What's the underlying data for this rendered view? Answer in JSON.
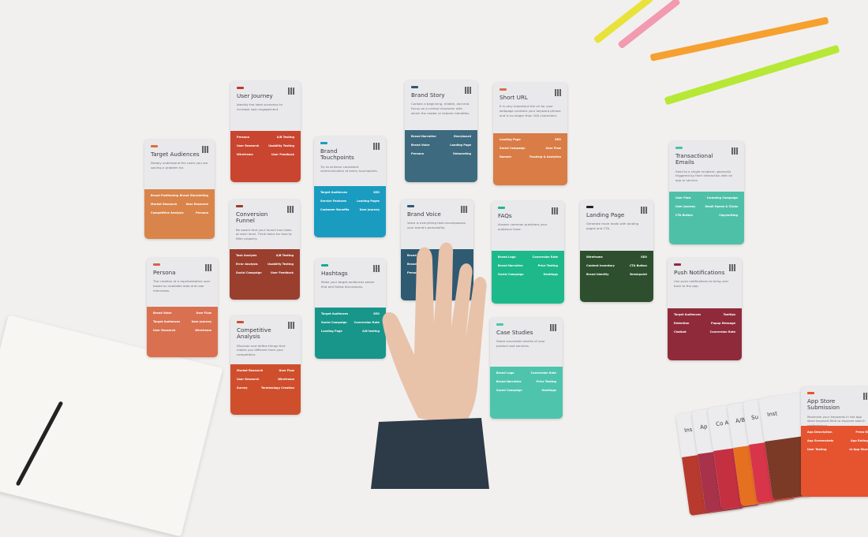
{
  "cards": [
    {
      "title": "Target Audiences",
      "desc": "Deeply understand the users you are solving a problem for.",
      "color": "#d9844a",
      "tag": "#e0703a",
      "rows": [
        [
          "Brand Positioning",
          "Brand Storytelling"
        ],
        [
          "Market Research",
          "User Research"
        ],
        [
          "Competitive Analysis",
          "Persona"
        ]
      ]
    },
    {
      "title": "User Journey",
      "desc": "Identify the ideal scenarios to increase user engagement.",
      "color": "#c9452f",
      "tag": "#c0392b",
      "rows": [
        [
          "Persona",
          "A/B Testing"
        ],
        [
          "User Research",
          "Usability Testing"
        ],
        [
          "Wireframe",
          "User Feedback"
        ]
      ]
    },
    {
      "title": "Brand Touchpoints",
      "desc": "Try to achieve consistent communication at every touchpoints.",
      "color": "#1a9cc0",
      "tag": "#1a9cc0",
      "rows": [
        [
          "Target Audiences",
          "SEO"
        ],
        [
          "Service Features",
          "Landing Pages"
        ],
        [
          "Customer Benefits",
          "User Journey"
        ]
      ]
    },
    {
      "title": "Conversion Funnel",
      "desc": "Be aware that your funnel has holes at each level. Think twice for how to filter properly.",
      "color": "#9a3e2e",
      "tag": "#9a3e2e",
      "rows": [
        [
          "Task Analysis",
          "A/B Testing"
        ],
        [
          "Error Analysis",
          "Usability Testing"
        ],
        [
          "Social Campaign",
          "User Feedback"
        ]
      ]
    },
    {
      "title": "Persona",
      "desc": "The creation of a representative user based on available data and user interviews.",
      "color": "#d9704f",
      "tag": "#d9604a",
      "rows": [
        [
          "Brand Voice",
          "User Flow"
        ],
        [
          "Target Audiences",
          "User Journey"
        ],
        [
          "User Research",
          "Wireframe"
        ]
      ]
    },
    {
      "title": "Competitive Analysis",
      "desc": "Discover and define things that makes you different from your competitors.",
      "color": "#cf4f2c",
      "tag": "#cf4f2c",
      "rows": [
        [
          "Market Research",
          "User Flow"
        ],
        [
          "User Research",
          "Wireframe"
        ],
        [
          "Survey",
          "Terminology Creation"
        ]
      ]
    },
    {
      "title": "Hashtags",
      "desc": "Make your target audiences easier find and follow discussions.",
      "color": "#18968a",
      "tag": "#18a898",
      "rows": [
        [
          "Target Audiences",
          "SEO"
        ],
        [
          "Social Campaign",
          "Conversion Rate"
        ],
        [
          "Landing Page",
          "A/B testing"
        ]
      ]
    },
    {
      "title": "Brand Story",
      "desc": "Contain a beginning, middle, and end. Focus on a central character with which the reader or listener identifies.",
      "color": "#3d6a7e",
      "tag": "#2e5a72",
      "rows": [
        [
          "Brand Narrative",
          "Storyboard"
        ],
        [
          "Brand Voice",
          "Landing Page"
        ],
        [
          "Persona",
          "Onboarding"
        ]
      ]
    },
    {
      "title": "Short URL",
      "desc": "It is very important the url for your webpage contains your keyword phrase and is no longer than 100 characters.",
      "color": "#d97c46",
      "tag": "#d9704a",
      "rows": [
        [
          "Landing Page",
          "SEO"
        ],
        [
          "Social Campaign",
          "User Flow"
        ],
        [
          "Domain",
          "Tracking & Analytics"
        ]
      ]
    },
    {
      "title": "Brand Voice",
      "desc": "Voice is everything that encompasses your brand's personality.",
      "color": "#2e5a72",
      "tag": "#2e5a72",
      "rows": [
        [
          "Brand Story",
          ""
        ],
        [
          "Brand Narrative",
          ""
        ],
        [
          "Persona",
          ""
        ]
      ]
    },
    {
      "title": "FAQs",
      "desc": "Answer common questions your audience have.",
      "color": "#1db98a",
      "tag": "#1db98a",
      "rows": [
        [
          "Brand Logo",
          "Conversion Rate"
        ],
        [
          "Brand Narrative",
          "Price Testing"
        ],
        [
          "Social Campaign",
          "Hashtags"
        ]
      ]
    },
    {
      "title": "Landing Page",
      "desc": "Generate more leads with landing pages and CTA.",
      "color": "#2d4f2e",
      "tag": "#222",
      "rows": [
        [
          "Wireframe",
          "SEO"
        ],
        [
          "Content Inventory",
          "CTA Button"
        ],
        [
          "Brand Identity",
          "Breakpoint"
        ]
      ]
    },
    {
      "title": "Transactional Emails",
      "desc": "Send to a single recipient, generally triggered by their interaction with an app or service.",
      "color": "#4fc0a8",
      "tag": "#4fc0a8",
      "rows": [
        [
          "User Flow",
          "Incoming Campaign"
        ],
        [
          "User Journey",
          "Email Opens & Clicks"
        ],
        [
          "CTA Button",
          "Copywriting"
        ]
      ]
    },
    {
      "title": "Push Notifications",
      "desc": "Use push notifications to bring user back to the app.",
      "color": "#8f2a3a",
      "tag": "#8f2a3a",
      "rows": [
        [
          "Target Audiences",
          "Tooltips"
        ],
        [
          "Retention",
          "Popup Message"
        ],
        [
          "Chatbot",
          "Conversion Rate"
        ]
      ]
    },
    {
      "title": "Case Studies",
      "desc": "Share successful stories of your product and services.",
      "color": "#4ec4ac",
      "tag": "#4ec4ac",
      "rows": [
        [
          "Brand Logo",
          "Conversion Rate"
        ],
        [
          "Brand Narrative",
          "Price Testing"
        ],
        [
          "Social Campaign",
          "Hashtags"
        ]
      ]
    },
    {
      "title": "App Store Submission",
      "desc": "Maximize your keywords in the app store keyword field to improve search performance.",
      "color": "#e5532f",
      "tag": "#e5532f",
      "rows": [
        [
          "App Description",
          "Press Kit"
        ],
        [
          "App Screenshots",
          "App Ratings"
        ],
        [
          "User Testing",
          "In-App Share"
        ]
      ]
    }
  ],
  "deck_partial_titles": [
    "Ins",
    "Ap",
    "Co A",
    "A/B T",
    "Su",
    "Inst"
  ]
}
